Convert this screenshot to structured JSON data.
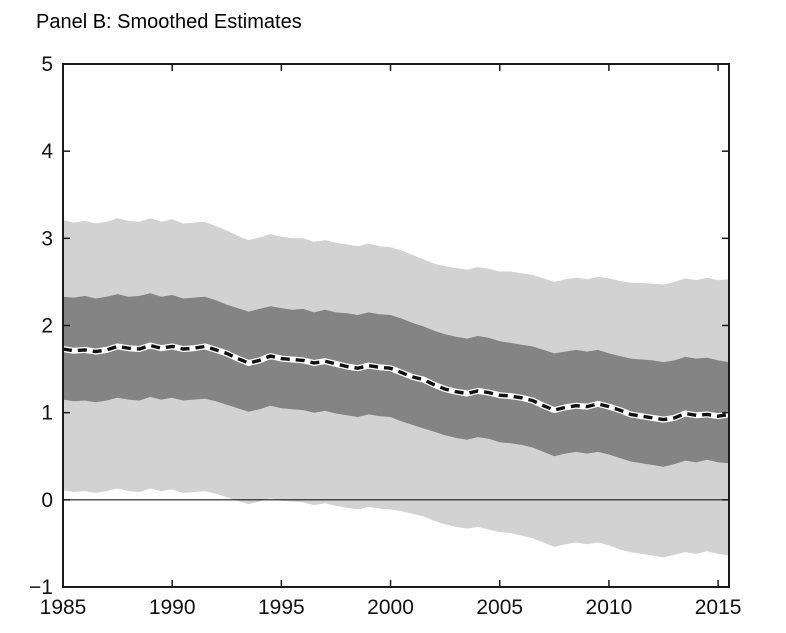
{
  "chart_data": {
    "type": "area",
    "title": "Panel B: Smoothed Estimates",
    "xlabel": "",
    "ylabel": "",
    "xlim": [
      1985,
      2015.5
    ],
    "ylim": [
      -1,
      5
    ],
    "xticks": [
      1985,
      1990,
      1995,
      2000,
      2005,
      2010,
      2015
    ],
    "yticks": [
      -1,
      0,
      1,
      2,
      3,
      4,
      5
    ],
    "xtick_labels": [
      "1985",
      "1990",
      "1995",
      "2000",
      "2005",
      "2010",
      "2015"
    ],
    "ytick_labels": [
      "−1",
      "0",
      "1",
      "2",
      "3",
      "4",
      "5"
    ],
    "grid": false,
    "legend": "none",
    "zero_line": 0,
    "x": [
      1985,
      1985.5,
      1986,
      1986.5,
      1987,
      1987.5,
      1988,
      1988.5,
      1989,
      1989.5,
      1990,
      1990.5,
      1991,
      1991.5,
      1992,
      1992.5,
      1993,
      1993.5,
      1994,
      1994.5,
      1995,
      1995.5,
      1996,
      1996.5,
      1997,
      1997.5,
      1998,
      1998.5,
      1999,
      1999.5,
      2000,
      2000.5,
      2001,
      2001.5,
      2002,
      2002.5,
      2003,
      2003.5,
      2004,
      2004.5,
      2005,
      2005.5,
      2006,
      2006.5,
      2007,
      2007.5,
      2008,
      2008.5,
      2009,
      2009.5,
      2010,
      2010.5,
      2011,
      2011.5,
      2012,
      2012.5,
      2013,
      2013.5,
      2014,
      2014.5,
      2015,
      2015.5
    ],
    "series": [
      {
        "name": "95% band upper",
        "role": "band95_upper",
        "values": [
          3.21,
          3.18,
          3.2,
          3.17,
          3.19,
          3.23,
          3.2,
          3.19,
          3.23,
          3.19,
          3.22,
          3.17,
          3.18,
          3.19,
          3.14,
          3.09,
          3.03,
          2.98,
          3.01,
          3.05,
          3.02,
          3.0,
          3.0,
          2.96,
          2.98,
          2.95,
          2.93,
          2.91,
          2.94,
          2.91,
          2.9,
          2.86,
          2.81,
          2.76,
          2.71,
          2.68,
          2.66,
          2.64,
          2.67,
          2.65,
          2.62,
          2.62,
          2.6,
          2.58,
          2.54,
          2.5,
          2.53,
          2.55,
          2.53,
          2.56,
          2.54,
          2.51,
          2.49,
          2.49,
          2.48,
          2.47,
          2.5,
          2.54,
          2.52,
          2.55,
          2.52,
          2.53
        ]
      },
      {
        "name": "68% band upper",
        "role": "band68_upper",
        "values": [
          2.33,
          2.32,
          2.34,
          2.31,
          2.33,
          2.36,
          2.33,
          2.34,
          2.37,
          2.33,
          2.35,
          2.31,
          2.32,
          2.33,
          2.29,
          2.24,
          2.2,
          2.16,
          2.19,
          2.22,
          2.2,
          2.18,
          2.19,
          2.15,
          2.18,
          2.15,
          2.14,
          2.12,
          2.15,
          2.13,
          2.12,
          2.08,
          2.03,
          1.99,
          1.94,
          1.9,
          1.87,
          1.85,
          1.88,
          1.86,
          1.82,
          1.8,
          1.78,
          1.76,
          1.72,
          1.68,
          1.7,
          1.72,
          1.7,
          1.72,
          1.68,
          1.65,
          1.62,
          1.61,
          1.6,
          1.58,
          1.6,
          1.64,
          1.62,
          1.63,
          1.6,
          1.58
        ]
      },
      {
        "name": "Smoothed estimate (median)",
        "role": "median",
        "values": [
          1.73,
          1.71,
          1.72,
          1.7,
          1.72,
          1.76,
          1.74,
          1.73,
          1.77,
          1.74,
          1.76,
          1.73,
          1.74,
          1.76,
          1.72,
          1.68,
          1.62,
          1.57,
          1.6,
          1.65,
          1.62,
          1.61,
          1.6,
          1.57,
          1.59,
          1.56,
          1.53,
          1.51,
          1.54,
          1.52,
          1.51,
          1.46,
          1.41,
          1.38,
          1.32,
          1.27,
          1.24,
          1.22,
          1.25,
          1.23,
          1.2,
          1.19,
          1.17,
          1.14,
          1.08,
          1.03,
          1.06,
          1.08,
          1.07,
          1.1,
          1.07,
          1.03,
          0.98,
          0.96,
          0.94,
          0.92,
          0.94,
          0.99,
          0.97,
          0.98,
          0.96,
          0.98
        ]
      },
      {
        "name": "68% band lower",
        "role": "band68_lower",
        "values": [
          1.15,
          1.13,
          1.14,
          1.12,
          1.14,
          1.17,
          1.15,
          1.14,
          1.18,
          1.15,
          1.17,
          1.14,
          1.15,
          1.16,
          1.13,
          1.09,
          1.05,
          1.01,
          1.04,
          1.08,
          1.05,
          1.04,
          1.03,
          1.0,
          1.02,
          0.99,
          0.97,
          0.95,
          0.98,
          0.96,
          0.95,
          0.9,
          0.86,
          0.82,
          0.78,
          0.74,
          0.71,
          0.69,
          0.72,
          0.7,
          0.66,
          0.65,
          0.63,
          0.6,
          0.55,
          0.5,
          0.53,
          0.55,
          0.53,
          0.55,
          0.52,
          0.48,
          0.44,
          0.42,
          0.4,
          0.38,
          0.41,
          0.45,
          0.43,
          0.46,
          0.43,
          0.42
        ]
      },
      {
        "name": "95% band lower",
        "role": "band95_lower",
        "values": [
          0.11,
          0.09,
          0.1,
          0.08,
          0.1,
          0.13,
          0.1,
          0.09,
          0.13,
          0.1,
          0.12,
          0.08,
          0.09,
          0.1,
          0.07,
          0.03,
          -0.01,
          -0.05,
          -0.02,
          0.02,
          -0.01,
          -0.02,
          -0.03,
          -0.06,
          -0.04,
          -0.07,
          -0.09,
          -0.11,
          -0.08,
          -0.1,
          -0.11,
          -0.13,
          -0.16,
          -0.19,
          -0.24,
          -0.28,
          -0.31,
          -0.33,
          -0.31,
          -0.34,
          -0.37,
          -0.38,
          -0.41,
          -0.44,
          -0.49,
          -0.54,
          -0.51,
          -0.49,
          -0.51,
          -0.49,
          -0.52,
          -0.57,
          -0.6,
          -0.62,
          -0.64,
          -0.66,
          -0.63,
          -0.6,
          -0.62,
          -0.59,
          -0.62,
          -0.64
        ]
      }
    ],
    "colors": {
      "band95": "#d2d2d2",
      "band68": "#848484",
      "median_dash": "#111111",
      "median_halo": "#ffffff",
      "axis": "#1a1a1a",
      "zero_line": "#1a1a1a",
      "background": "#ffffff"
    }
  }
}
